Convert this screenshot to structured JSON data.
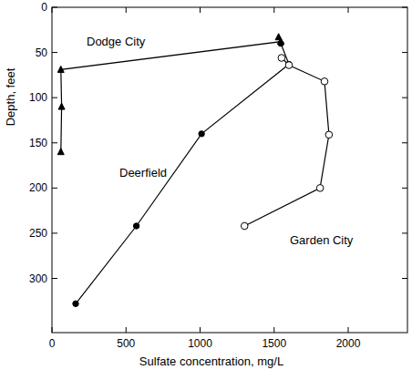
{
  "chart_data": {
    "type": "line",
    "x_label": "Sulfate concentration, mg/L",
    "y_label": "Depth, feet",
    "xlim": [
      0,
      2400
    ],
    "ylim": [
      0,
      360
    ],
    "xticks": [
      0,
      500,
      1000,
      1500,
      2000
    ],
    "yticks": [
      0,
      50,
      100,
      150,
      200,
      250,
      300
    ],
    "series": [
      {
        "name": "Dodge City",
        "color": "#000000",
        "marker": "triangle",
        "x": [
          1530,
          1545,
          60,
          65,
          60
        ],
        "values": [
          33,
          38,
          69,
          110,
          160
        ]
      },
      {
        "name": "Deerfield",
        "color": "#000000",
        "marker": "circle",
        "x": [
          1545,
          1600,
          1010,
          570,
          160
        ],
        "values": [
          40,
          63,
          140,
          242,
          328
        ]
      },
      {
        "name": "Garden City",
        "color": "#000000",
        "marker": "circle-open",
        "x": [
          1550,
          1600,
          1840,
          1870,
          1810,
          1300
        ],
        "values": [
          56,
          64,
          82,
          141,
          200,
          242
        ]
      }
    ]
  }
}
